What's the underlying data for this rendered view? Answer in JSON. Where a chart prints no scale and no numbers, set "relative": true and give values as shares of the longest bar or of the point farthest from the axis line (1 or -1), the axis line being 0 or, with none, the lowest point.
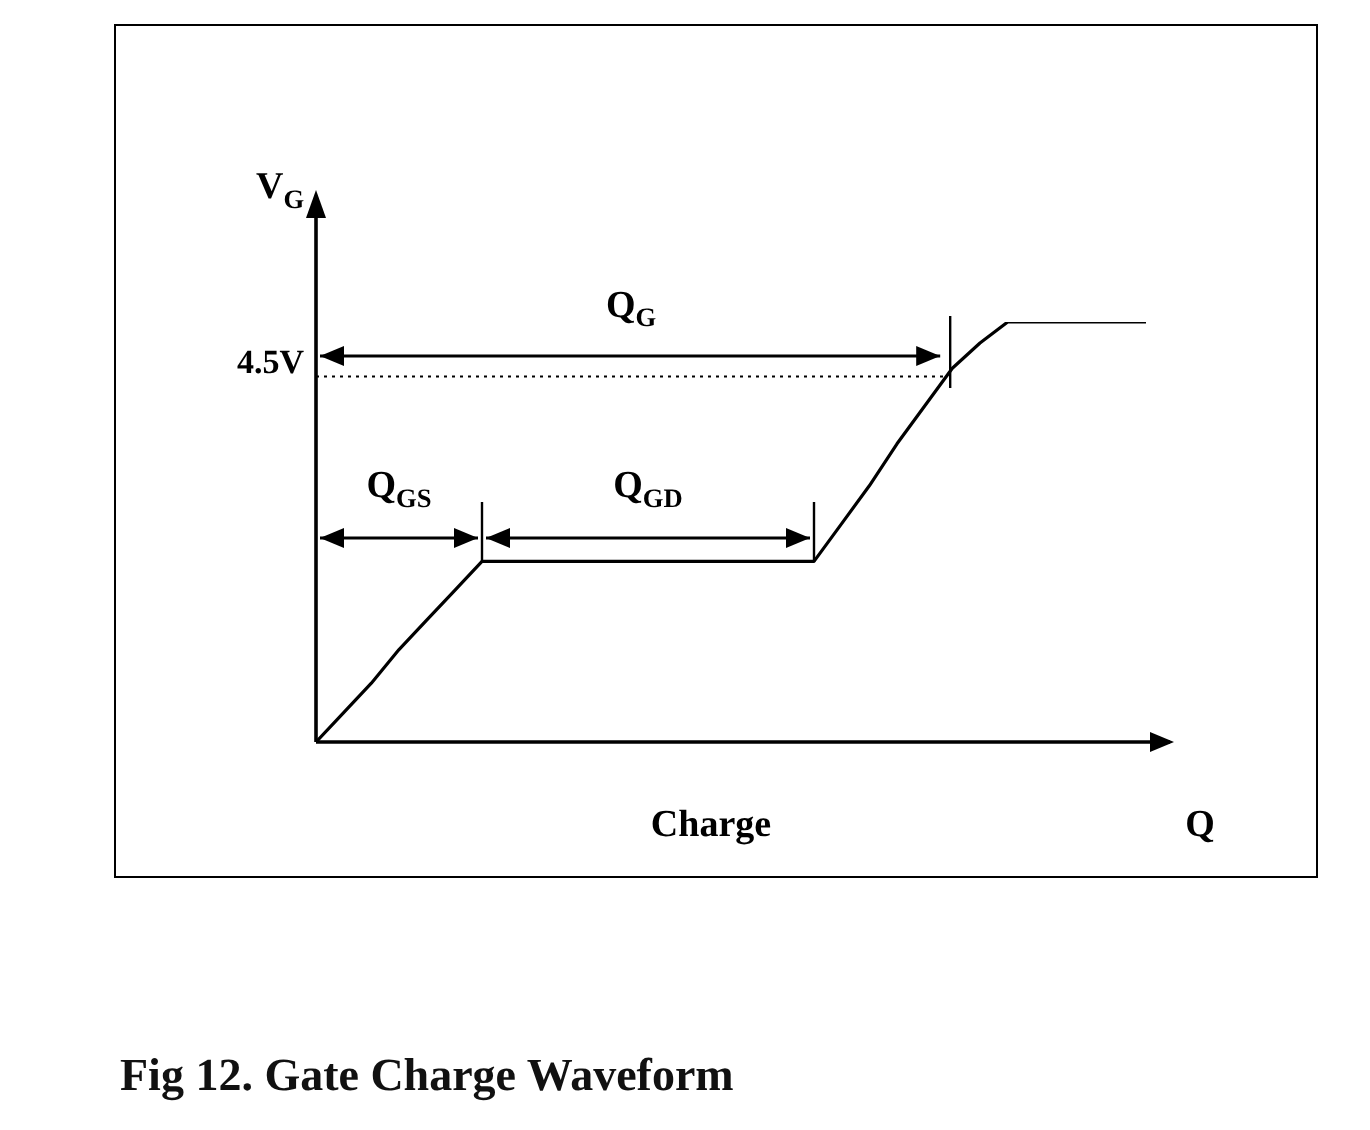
{
  "chart_data": {
    "type": "line",
    "title": "Fig 12. Gate Charge Waveform",
    "xlabel": "Charge",
    "ylabel": "V$_{G}$",
    "relative": true,
    "categories": [
      null,
      null,
      null,
      null,
      null,
      null,
      null,
      null,
      null,
      null,
      null,
      null,
      null,
      null,
      null,
      null,
      null,
      null,
      null,
      null,
      null,
      null,
      null,
      null,
      null,
      null,
      null,
      null,
      null,
      null,
      null
    ],
    "series": [
      {
        "color": "#000000",
        "values": [
          0,
          0.07,
          0.14,
          0.22,
          0.29,
          0.36,
          0.43,
          0.43,
          0.43,
          0.43,
          0.43,
          0.43,
          0.43,
          0.43,
          0.43,
          0.43,
          0.43,
          0.43,
          0.43,
          0.52,
          0.61,
          0.71,
          0.8,
          0.89,
          0.95,
          1,
          1,
          1,
          1,
          1,
          1
        ]
      }
    ],
    "ref_lines": [
      {
        "axis": "y",
        "value": 0.87,
        "label": "4.5V",
        "color": "#000000",
        "line_style": "dotted"
      }
    ],
    "annotations": [
      "Q$_{G}$",
      "Q$_{GS}$",
      "Q$_{GD}$",
      "Q"
    ],
    "marker": "none",
    "line_style": "solid",
    "legend": false
  }
}
